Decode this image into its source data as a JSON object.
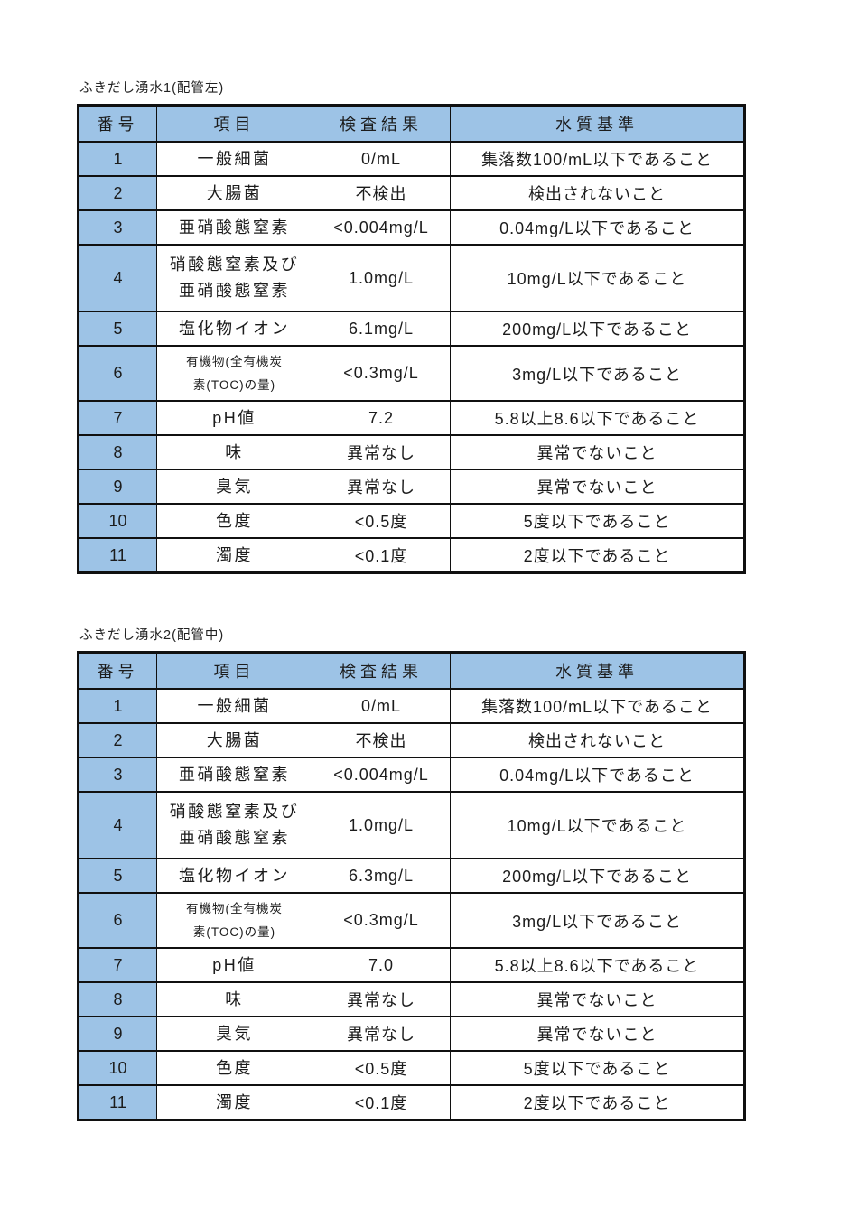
{
  "colors": {
    "table_header_fill": "#9dc3e6",
    "number_column_fill": "#9dc3e6",
    "grid_border": "#101010",
    "page_background": "#ffffff"
  },
  "document": {
    "tables": [
      {
        "title": "ふきだし湧水1(配管左)",
        "headers": {
          "no": "番号",
          "item": "項目",
          "result": "検査結果",
          "standard": "水質基準"
        },
        "rows": [
          {
            "no": "1",
            "item": "一般細菌",
            "result": "0/mL",
            "standard": "集落数100/mL以下であること"
          },
          {
            "no": "2",
            "item": "大腸菌",
            "result": "不検出",
            "standard": "検出されないこと"
          },
          {
            "no": "3",
            "item": "亜硝酸態窒素",
            "result": "<0.004mg/L",
            "standard": "0.04mg/L以下であること"
          },
          {
            "no": "4",
            "item": "硝酸態窒素及び\n亜硝酸態窒素",
            "result": "1.0mg/L",
            "standard": "10mg/L以下であること"
          },
          {
            "no": "5",
            "item": "塩化物イオン",
            "result": "6.1mg/L",
            "standard": "200mg/L以下であること"
          },
          {
            "no": "6",
            "item": "有機物(全有機炭\n素(TOC)の量)",
            "result": "<0.3mg/L",
            "standard": "3mg/L以下であること"
          },
          {
            "no": "7",
            "item": "pH値",
            "result": "7.2",
            "standard": "5.8以上8.6以下であること"
          },
          {
            "no": "8",
            "item": "味",
            "result": "異常なし",
            "standard": "異常でないこと"
          },
          {
            "no": "9",
            "item": "臭気",
            "result": "異常なし",
            "standard": "異常でないこと"
          },
          {
            "no": "10",
            "item": "色度",
            "result": "<0.5度",
            "standard": "5度以下であること"
          },
          {
            "no": "11",
            "item": "濁度",
            "result": "<0.1度",
            "standard": "2度以下であること"
          }
        ]
      },
      {
        "title": "ふきだし湧水2(配管中)",
        "headers": {
          "no": "番号",
          "item": "項目",
          "result": "検査結果",
          "standard": "水質基準"
        },
        "rows": [
          {
            "no": "1",
            "item": "一般細菌",
            "result": "0/mL",
            "standard": "集落数100/mL以下であること"
          },
          {
            "no": "2",
            "item": "大腸菌",
            "result": "不検出",
            "standard": "検出されないこと"
          },
          {
            "no": "3",
            "item": "亜硝酸態窒素",
            "result": "<0.004mg/L",
            "standard": "0.04mg/L以下であること"
          },
          {
            "no": "4",
            "item": "硝酸態窒素及び\n亜硝酸態窒素",
            "result": "1.0mg/L",
            "standard": "10mg/L以下であること"
          },
          {
            "no": "5",
            "item": "塩化物イオン",
            "result": "6.3mg/L",
            "standard": "200mg/L以下であること"
          },
          {
            "no": "6",
            "item": "有機物(全有機炭\n素(TOC)の量)",
            "result": "<0.3mg/L",
            "standard": "3mg/L以下であること"
          },
          {
            "no": "7",
            "item": "pH値",
            "result": "7.0",
            "standard": "5.8以上8.6以下であること"
          },
          {
            "no": "8",
            "item": "味",
            "result": "異常なし",
            "standard": "異常でないこと"
          },
          {
            "no": "9",
            "item": "臭気",
            "result": "異常なし",
            "standard": "異常でないこと"
          },
          {
            "no": "10",
            "item": "色度",
            "result": "<0.5度",
            "standard": "5度以下であること"
          },
          {
            "no": "11",
            "item": "濁度",
            "result": "<0.1度",
            "standard": "2度以下であること"
          }
        ]
      }
    ]
  }
}
